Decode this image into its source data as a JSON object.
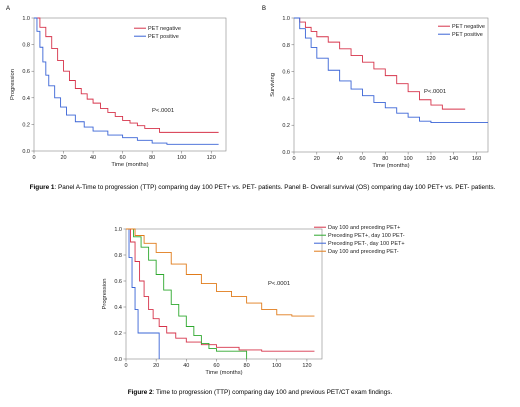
{
  "charts": [
    {
      "panel": "A",
      "type": "line",
      "xlabel": "Time (months)",
      "ylabel": "Progression",
      "xlim": [
        0,
        130
      ],
      "ylim": [
        0,
        1
      ],
      "xticks": [
        "0",
        "20",
        "40",
        "60",
        "80",
        "100",
        "120"
      ],
      "yticks": [
        "0.0",
        "0.2",
        "0.4",
        "0.6",
        "0.8",
        "1.0"
      ],
      "legend_position": "top-right",
      "annotation": "P<.0001",
      "series": [
        {
          "name": "PET negative",
          "color": "#d6334a",
          "points": [
            [
              0,
              1
            ],
            [
              4,
              0.93
            ],
            [
              8,
              0.86
            ],
            [
              12,
              0.77
            ],
            [
              16,
              0.68
            ],
            [
              20,
              0.6
            ],
            [
              24,
              0.53
            ],
            [
              28,
              0.47
            ],
            [
              32,
              0.43
            ],
            [
              36,
              0.39
            ],
            [
              40,
              0.36
            ],
            [
              45,
              0.32
            ],
            [
              50,
              0.29
            ],
            [
              55,
              0.26
            ],
            [
              60,
              0.23
            ],
            [
              65,
              0.21
            ],
            [
              70,
              0.19
            ],
            [
              75,
              0.17
            ],
            [
              85,
              0.14
            ],
            [
              125,
              0.14
            ]
          ]
        },
        {
          "name": "PET positive",
          "color": "#3a64d6",
          "points": [
            [
              0,
              1
            ],
            [
              2,
              0.9
            ],
            [
              4,
              0.78
            ],
            [
              6,
              0.67
            ],
            [
              8,
              0.57
            ],
            [
              10,
              0.49
            ],
            [
              14,
              0.4
            ],
            [
              18,
              0.33
            ],
            [
              22,
              0.27
            ],
            [
              28,
              0.22
            ],
            [
              34,
              0.18
            ],
            [
              40,
              0.15
            ],
            [
              50,
              0.12
            ],
            [
              60,
              0.1
            ],
            [
              70,
              0.08
            ],
            [
              80,
              0.06
            ],
            [
              90,
              0.05
            ],
            [
              125,
              0.05
            ]
          ]
        }
      ]
    },
    {
      "panel": "B",
      "type": "line",
      "xlabel": "Time (months)",
      "ylabel": "Surviving",
      "xlim": [
        0,
        170
      ],
      "ylim": [
        0,
        1
      ],
      "xticks": [
        "0",
        "20",
        "40",
        "60",
        "80",
        "100",
        "120",
        "140",
        "160"
      ],
      "yticks": [
        "0.0",
        "0.2",
        "0.4",
        "0.6",
        "0.8",
        "1.0"
      ],
      "legend_position": "top-right",
      "annotation": "P<.0001",
      "series": [
        {
          "name": "PET negative",
          "color": "#d6334a",
          "points": [
            [
              0,
              1
            ],
            [
              5,
              0.97
            ],
            [
              10,
              0.93
            ],
            [
              15,
              0.9
            ],
            [
              20,
              0.86
            ],
            [
              30,
              0.82
            ],
            [
              40,
              0.77
            ],
            [
              50,
              0.72
            ],
            [
              60,
              0.67
            ],
            [
              70,
              0.62
            ],
            [
              80,
              0.57
            ],
            [
              90,
              0.51
            ],
            [
              100,
              0.45
            ],
            [
              110,
              0.39
            ],
            [
              120,
              0.35
            ],
            [
              130,
              0.32
            ],
            [
              150,
              0.32
            ]
          ]
        },
        {
          "name": "PET positive",
          "color": "#3a64d6",
          "points": [
            [
              0,
              1
            ],
            [
              5,
              0.92
            ],
            [
              10,
              0.85
            ],
            [
              15,
              0.78
            ],
            [
              20,
              0.7
            ],
            [
              30,
              0.61
            ],
            [
              40,
              0.53
            ],
            [
              50,
              0.47
            ],
            [
              60,
              0.42
            ],
            [
              70,
              0.37
            ],
            [
              80,
              0.33
            ],
            [
              90,
              0.29
            ],
            [
              100,
              0.26
            ],
            [
              110,
              0.23
            ],
            [
              120,
              0.22
            ],
            [
              170,
              0.22
            ]
          ]
        }
      ]
    },
    {
      "panel": "",
      "type": "line",
      "xlabel": "Time (months)",
      "ylabel": "Progression",
      "xlim": [
        0,
        130
      ],
      "ylim": [
        0,
        1
      ],
      "xticks": [
        "0",
        "20",
        "40",
        "60",
        "80",
        "100",
        "120"
      ],
      "yticks": [
        "0.0",
        "0.2",
        "0.4",
        "0.6",
        "0.8",
        "1.0"
      ],
      "legend_position": "top-right",
      "annotation": "P<.0001",
      "series": [
        {
          "name": "Day 100 and preceding PET+",
          "color": "#d6334a",
          "points": [
            [
              0,
              1
            ],
            [
              3,
              0.9
            ],
            [
              6,
              0.75
            ],
            [
              9,
              0.6
            ],
            [
              12,
              0.48
            ],
            [
              15,
              0.38
            ],
            [
              18,
              0.31
            ],
            [
              22,
              0.25
            ],
            [
              27,
              0.2
            ],
            [
              33,
              0.16
            ],
            [
              40,
              0.13
            ],
            [
              50,
              0.11
            ],
            [
              60,
              0.09
            ],
            [
              75,
              0.07
            ],
            [
              90,
              0.06
            ],
            [
              125,
              0.06
            ]
          ]
        },
        {
          "name": "Preceding PET+, day 100 PET-",
          "color": "#2ea82e",
          "points": [
            [
              0,
              1
            ],
            [
              5,
              0.94
            ],
            [
              10,
              0.86
            ],
            [
              15,
              0.76
            ],
            [
              20,
              0.65
            ],
            [
              25,
              0.53
            ],
            [
              30,
              0.42
            ],
            [
              35,
              0.33
            ],
            [
              40,
              0.25
            ],
            [
              45,
              0.18
            ],
            [
              50,
              0.12
            ],
            [
              55,
              0.08
            ],
            [
              60,
              0.06
            ],
            [
              80,
              0.04
            ],
            [
              80,
              0
            ]
          ]
        },
        {
          "name": "Preceding PET-, day 100 PET+",
          "color": "#3a64d6",
          "points": [
            [
              0,
              1
            ],
            [
              2,
              0.78
            ],
            [
              4,
              0.55
            ],
            [
              6,
              0.38
            ],
            [
              8,
              0.2
            ],
            [
              20,
              0.2
            ],
            [
              22,
              0
            ]
          ]
        },
        {
          "name": "Day 100 and preceding PET-",
          "color": "#e07b1a",
          "points": [
            [
              0,
              1
            ],
            [
              6,
              0.95
            ],
            [
              12,
              0.89
            ],
            [
              20,
              0.82
            ],
            [
              30,
              0.73
            ],
            [
              40,
              0.65
            ],
            [
              50,
              0.58
            ],
            [
              60,
              0.52
            ],
            [
              70,
              0.48
            ],
            [
              80,
              0.43
            ],
            [
              90,
              0.38
            ],
            [
              100,
              0.34
            ],
            [
              110,
              0.33
            ],
            [
              125,
              0.33
            ]
          ]
        }
      ]
    }
  ],
  "captions": [
    {
      "bold": "Figure 1",
      "text": ": Panel A-Time to progression (TTP) comparing day 100 PET+ vs. PET- patients. Panel B- Overall survival (OS) comparing day 100 PET+ vs. PET- patients."
    },
    {
      "bold": "Figure 2",
      "text": ": Time to progression (TTP) comparing day 100 and previous PET/CT exam findings."
    }
  ]
}
